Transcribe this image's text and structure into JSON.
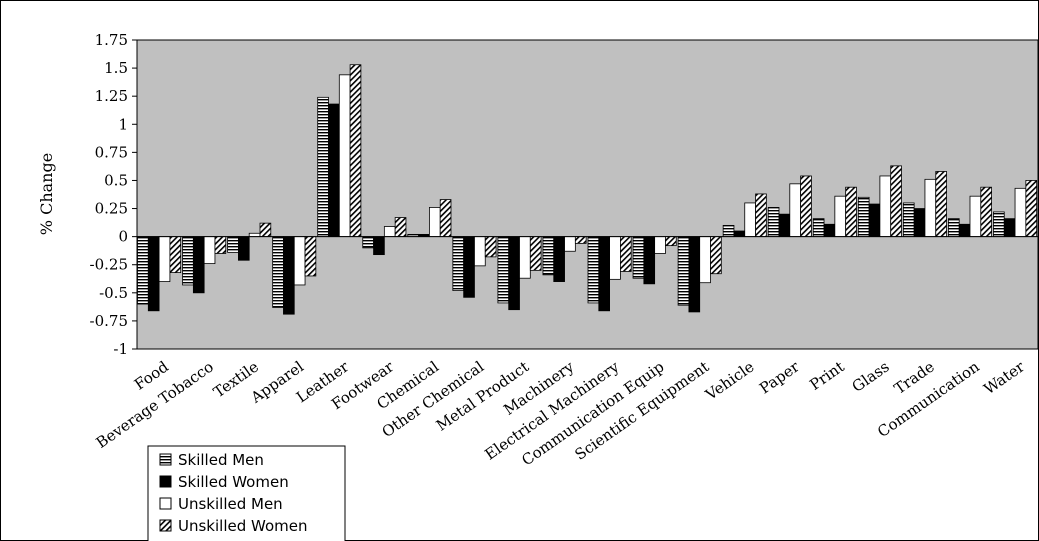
{
  "chart_data": {
    "type": "bar",
    "title": "",
    "xlabel": "",
    "ylabel": "% Change",
    "ylim": [
      -1,
      1.75
    ],
    "yticks": [
      "1.75",
      "1.5",
      "1.25",
      "1",
      "0.75",
      "0.5",
      "0.25",
      "0",
      "-0.25",
      "-0.5",
      "-0.75",
      "-1"
    ],
    "grid": false,
    "legend_position": "bottom-left",
    "categories": [
      "Food",
      "Beverage Tobacco",
      "Textile",
      "Apparel",
      "Leather",
      "Footwear",
      "Chemical",
      "Other Chemical",
      "Metal Product",
      "Machinery",
      "Electrical Machinery",
      "Communication Equip",
      "Scientific Equipment",
      "Vehicle",
      "Paper",
      "Print",
      "Glass",
      "Trade",
      "Communication",
      "Water"
    ],
    "series": [
      {
        "name": "Skilled Men",
        "pattern": "horizontal-lines",
        "values": [
          -0.6,
          -0.43,
          -0.14,
          -0.63,
          1.24,
          -0.1,
          0.02,
          -0.48,
          -0.59,
          -0.34,
          -0.59,
          -0.37,
          -0.61,
          0.1,
          0.26,
          0.16,
          0.35,
          0.3,
          0.16,
          0.22
        ]
      },
      {
        "name": "Skilled Women",
        "pattern": "solid-black",
        "values": [
          -0.66,
          -0.5,
          -0.21,
          -0.69,
          1.18,
          -0.16,
          0.02,
          -0.54,
          -0.65,
          -0.4,
          -0.66,
          -0.42,
          -0.67,
          0.05,
          0.2,
          0.11,
          0.29,
          0.25,
          0.11,
          0.16
        ]
      },
      {
        "name": "Unskilled Men",
        "pattern": "white",
        "values": [
          -0.4,
          -0.24,
          0.03,
          -0.43,
          1.44,
          0.09,
          0.26,
          -0.26,
          -0.37,
          -0.13,
          -0.38,
          -0.15,
          -0.41,
          0.3,
          0.47,
          0.36,
          0.54,
          0.51,
          0.36,
          0.43
        ]
      },
      {
        "name": "Unskilled Women",
        "pattern": "diagonal-hatch",
        "values": [
          -0.32,
          -0.15,
          0.12,
          -0.35,
          1.53,
          0.17,
          0.33,
          -0.18,
          -0.3,
          -0.06,
          -0.31,
          -0.08,
          -0.33,
          0.38,
          0.54,
          0.44,
          0.63,
          0.58,
          0.44,
          0.5
        ]
      }
    ]
  },
  "colors": {
    "plot_background": "#c0c0c0",
    "bar_stroke": "#000000"
  }
}
